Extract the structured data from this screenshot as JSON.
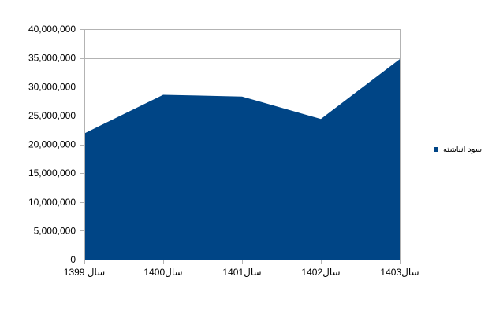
{
  "chart_data": {
    "type": "area",
    "categories": [
      "سال 1399",
      "سال1400",
      "سال1401",
      "سال1402",
      "سال1403"
    ],
    "series": [
      {
        "name": "سود انباشته",
        "values": [
          21900000,
          28600000,
          28300000,
          24400000,
          34800000
        ],
        "color": "#004586"
      }
    ],
    "ylim": [
      0,
      40000000
    ],
    "yticks": [
      0,
      5000000,
      10000000,
      15000000,
      20000000,
      25000000,
      30000000,
      35000000,
      40000000
    ],
    "ytick_labels": [
      "0",
      "5,000,000",
      "10,000,000",
      "15,000,000",
      "20,000,000",
      "25,000,000",
      "30,000,000",
      "35,000,000",
      "40,000,000"
    ],
    "grid": true,
    "gridline_color": "#b3b3b3",
    "axis_color": "#b3b3b3",
    "legend_position": "right"
  }
}
